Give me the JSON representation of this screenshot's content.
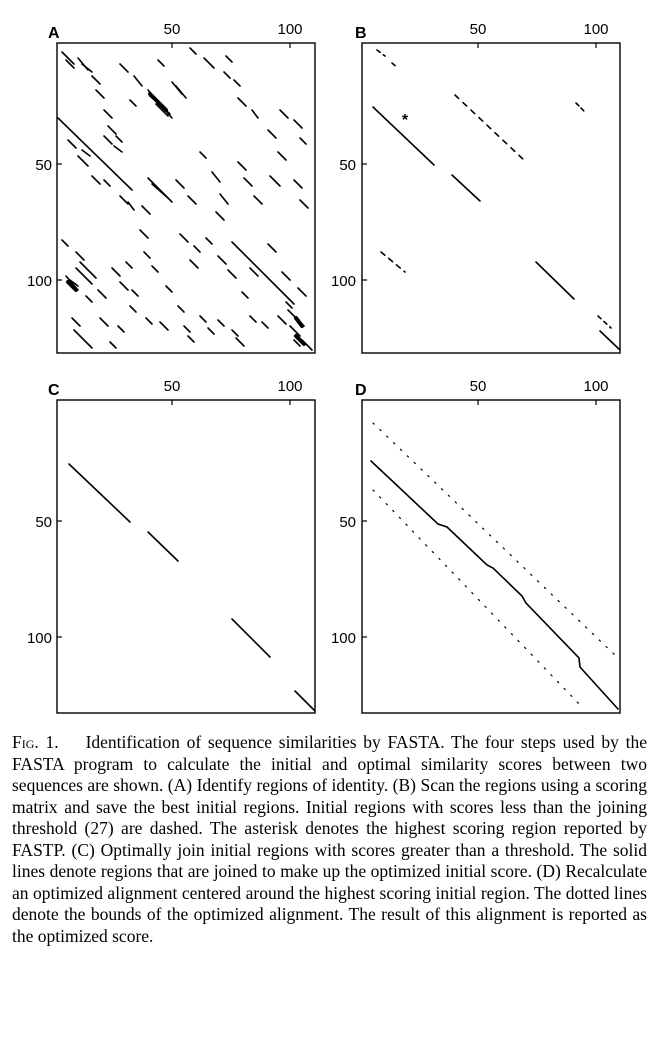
{
  "figure": {
    "panels": [
      {
        "letter": "A",
        "x_ticks": [
          "50",
          "100"
        ],
        "y_ticks": [
          "50",
          "100"
        ]
      },
      {
        "letter": "B",
        "x_ticks": [
          "50",
          "100"
        ],
        "y_ticks": [
          "50",
          "100"
        ],
        "asterisk": "*"
      },
      {
        "letter": "C",
        "x_ticks": [
          "50",
          "100"
        ],
        "y_ticks": [
          "50",
          "100"
        ]
      },
      {
        "letter": "D",
        "x_ticks": [
          "50",
          "100"
        ],
        "y_ticks": [
          "50",
          "100"
        ]
      }
    ]
  },
  "caption": {
    "label": "Fig. 1.",
    "text": "Identification of sequence similarities by FASTA. The four steps used by the FASTA program to calculate the initial and optimal similarity scores between two sequences are shown. (A) Identify regions of identity. (B) Scan the regions using a scoring matrix and save the best initial regions. Initial regions with scores less than the joining threshold (27) are dashed. The asterisk denotes the highest scoring region reported by FASTP. (C) Optimally join initial regions with scores greater than a threshold. The solid lines denote regions that are joined to make up the optimized initial score. (D) Recalculate an optimized alignment centered around the highest scoring initial region. The dotted lines denote the bounds of the optimized alignment. The result of this alignment is reported as the optimized score."
  }
}
